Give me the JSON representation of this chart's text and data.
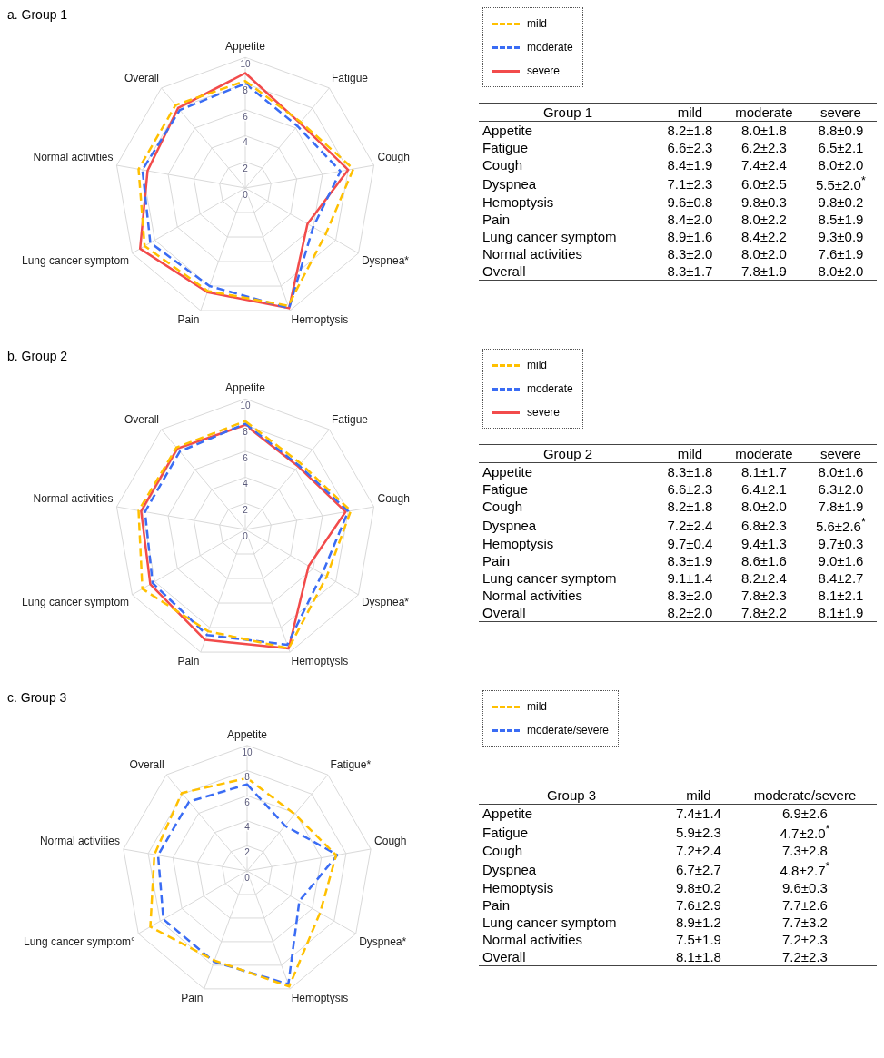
{
  "chart_data": [
    {
      "type": "radar",
      "title": "a. Group 1",
      "categories": [
        "Appetite",
        "Fatigue",
        "Cough",
        "Dyspnea*",
        "Hemoptysis",
        "Pain",
        "Lung cancer symptom",
        "Normal activities",
        "Overall"
      ],
      "ylim": [
        0,
        10
      ],
      "yticks": [
        0,
        2,
        4,
        6,
        8,
        10
      ],
      "grid": true,
      "legend": "right",
      "marker": "none",
      "annotations": [
        "Group 1",
        "Appetite",
        "Fatigue",
        "Cough",
        "Dyspnea",
        "Hemoptysis",
        "Pain",
        "Lung cancer symptom",
        "Normal activities",
        "Overall",
        "8.2±1.8",
        "6.6±2.3",
        "8.4±1.9",
        "7.1±2.3",
        "9.6±0.8",
        "8.4±2.0",
        "8.9±1.6",
        "8.3±2.0",
        "8.3±1.7",
        "8.0±1.8",
        "6.2±2.3",
        "7.4±2.4",
        "6.0±2.5",
        "9.8±0.3",
        "8.0±2.2",
        "8.4±2.2",
        "8.0±2.0",
        "7.8±1.9",
        "8.8±0.9",
        "6.5±2.1",
        "8.0±2.0",
        "5.5±2.0$^{*}$",
        "9.8±0.2",
        "8.5±1.9",
        "9.3±0.9",
        "7.6±1.9",
        "8.0±2.0"
      ],
      "series": [
        {
          "name": "mild",
          "color": "#ffc000",
          "line_style": "dashed",
          "values": [
            8.2,
            6.6,
            8.4,
            7.1,
            9.6,
            8.4,
            8.9,
            8.3,
            8.3
          ]
        },
        {
          "name": "moderate",
          "color": "#3a6cf4",
          "line_style": "dashed",
          "values": [
            8.0,
            6.2,
            7.4,
            6.0,
            9.8,
            8.0,
            8.4,
            8.0,
            7.8
          ]
        },
        {
          "name": "severe",
          "color": "#f24b4b",
          "line_style": "solid",
          "values": [
            8.8,
            6.5,
            8.0,
            5.5,
            9.8,
            8.5,
            9.3,
            7.6,
            8.0
          ]
        }
      ]
    },
    {
      "type": "radar",
      "title": "b. Group 2",
      "categories": [
        "Appetite",
        "Fatigue",
        "Cough",
        "Dyspnea*",
        "Hemoptysis",
        "Pain",
        "Lung cancer symptom",
        "Normal activities",
        "Overall"
      ],
      "ylim": [
        0,
        10
      ],
      "yticks": [
        0,
        2,
        4,
        6,
        8,
        10
      ],
      "grid": true,
      "legend": "right",
      "marker": "none",
      "annotations": [
        "Group 2",
        "Appetite",
        "Fatigue",
        "Cough",
        "Dyspnea",
        "Hemoptysis",
        "Pain",
        "Lung cancer symptom",
        "Normal activities",
        "Overall",
        "8.3±1.8",
        "6.6±2.3",
        "8.2±1.8",
        "7.2±2.4",
        "9.7±0.4",
        "8.3±1.9",
        "9.1±1.4",
        "8.3±2.0",
        "8.2±2.0",
        "8.1±1.7",
        "6.4±2.1",
        "8.0±2.0",
        "6.8±2.3",
        "9.4±1.3",
        "8.6±1.6",
        "8.2±2.4",
        "7.8±2.3",
        "7.8±2.2",
        "8.0±1.6",
        "6.3±2.0",
        "7.8±1.9",
        "5.6±2.6$^{*}$",
        "9.7±0.3",
        "9.0±1.6",
        "8.4±2.7",
        "8.1±2.1",
        "8.1±1.9"
      ],
      "series": [
        {
          "name": "mild",
          "color": "#ffc000",
          "line_style": "dashed",
          "values": [
            8.3,
            6.6,
            8.2,
            7.2,
            9.7,
            8.3,
            9.1,
            8.3,
            8.2
          ]
        },
        {
          "name": "moderate",
          "color": "#3a6cf4",
          "line_style": "dashed",
          "values": [
            8.1,
            6.4,
            8.0,
            6.8,
            9.4,
            8.6,
            8.2,
            7.8,
            7.8
          ]
        },
        {
          "name": "severe",
          "color": "#f24b4b",
          "line_style": "solid",
          "values": [
            8.0,
            6.3,
            7.8,
            5.6,
            9.7,
            9.0,
            8.4,
            8.1,
            8.1
          ]
        }
      ]
    },
    {
      "type": "radar",
      "title": "c. Group 3",
      "categories": [
        "Appetite",
        "Fatigue*",
        "Cough",
        "Dyspnea*",
        "Hemoptysis",
        "Pain",
        "Lung cancer symptom°",
        "Normal activities",
        "Overall"
      ],
      "ylim": [
        0,
        10
      ],
      "yticks": [
        0,
        2,
        4,
        6,
        8,
        10
      ],
      "grid": true,
      "legend": "right",
      "marker": "none",
      "annotations": [
        "Group 3",
        "Appetite",
        "Fatigue",
        "Cough",
        "Dyspnea",
        "Hemoptysis",
        "Pain",
        "Lung cancer symptom",
        "Normal activities",
        "Overall",
        "7.4±1.4",
        "5.9±2.3",
        "7.2±2.4",
        "6.7±2.7",
        "9.8±0.2",
        "7.6±2.9",
        "8.9±1.2",
        "7.5±1.9",
        "8.1±1.8",
        "6.9±2.6",
        "4.7±2.0$^{*}$",
        "7.3±2.8",
        "4.8±2.7$^{*}$",
        "9.6±0.3",
        "7.7±2.6",
        "7.7±3.2",
        "7.2±2.3",
        "7.2±2.3"
      ],
      "series": [
        {
          "name": "mild",
          "color": "#ffc000",
          "line_style": "dashed",
          "values": [
            7.4,
            5.9,
            7.2,
            6.7,
            9.8,
            7.6,
            8.9,
            7.5,
            8.1
          ]
        },
        {
          "name": "moderate/severe",
          "color": "#3a6cf4",
          "line_style": "dashed",
          "values": [
            6.9,
            4.7,
            7.3,
            4.8,
            9.6,
            7.7,
            7.7,
            7.2,
            7.2
          ]
        }
      ]
    }
  ]
}
